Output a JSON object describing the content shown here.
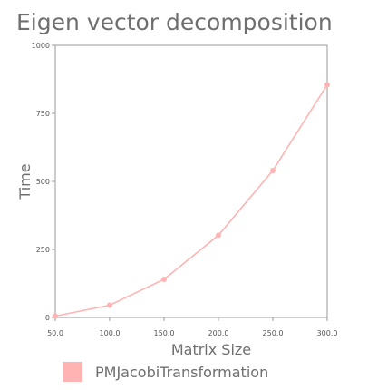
{
  "chart_data": {
    "type": "line",
    "title": "Eigen vector decomposition",
    "xlabel": "Matrix Size",
    "ylabel": "Time",
    "x": [
      50,
      100,
      150,
      200,
      250,
      300
    ],
    "x_tick_labels": [
      "50.0",
      "100.0",
      "150.0",
      "200.0",
      "250.0",
      "300.0"
    ],
    "xlim": [
      50,
      300
    ],
    "y_ticks": [
      0,
      250,
      500,
      750,
      1000
    ],
    "y_tick_labels": [
      "0",
      "250",
      "500",
      "750",
      "1000"
    ],
    "ylim": [
      0,
      1000
    ],
    "grid": false,
    "legend_position": "bottom-left",
    "series": [
      {
        "name": "PMJacobiTransformation",
        "color": "#ffb3b3",
        "values": [
          5,
          45,
          140,
          302,
          540,
          855
        ]
      }
    ]
  }
}
